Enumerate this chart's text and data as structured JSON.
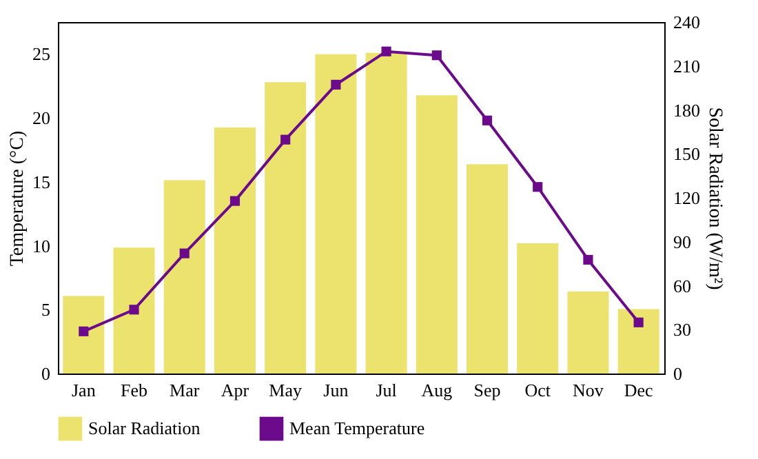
{
  "chart_data": {
    "type": "bar",
    "categories": [
      "Jan",
      "Feb",
      "Mar",
      "Apr",
      "May",
      "Jun",
      "Jul",
      "Aug",
      "Sep",
      "Oct",
      "Nov",
      "Dec"
    ],
    "series": [
      {
        "name": "Solar Radiation",
        "axis": "y2",
        "color": "#ebe36e",
        "values": [
          53,
          86,
          132,
          168,
          199,
          218,
          219,
          190,
          143,
          89,
          56,
          44
        ]
      },
      {
        "name": "Mean Temperature",
        "type": "line",
        "axis": "y",
        "color": "#6b0a8a",
        "marker": "square",
        "line_style": "solid",
        "values": [
          3.3,
          5.0,
          9.4,
          13.5,
          18.3,
          22.6,
          25.2,
          24.9,
          19.8,
          14.6,
          8.9,
          4.0
        ]
      }
    ],
    "ylabel": "Temperature (°C)",
    "y2label": "Solar Radiation (W/m²)",
    "ylim": [
      0,
      27.5
    ],
    "yticks": [
      0,
      5,
      10,
      15,
      20,
      25
    ],
    "y2lim": [
      0,
      240
    ],
    "y2ticks": [
      0,
      30,
      60,
      90,
      120,
      150,
      180,
      210,
      240
    ],
    "legend": "bottom"
  }
}
